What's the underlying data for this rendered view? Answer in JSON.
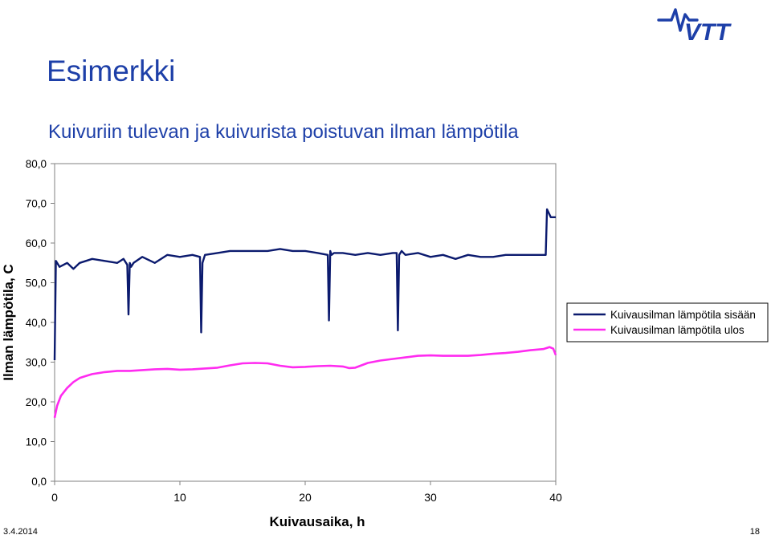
{
  "slide": {
    "title": "Esimerkki",
    "date": "3.4.2014",
    "page_number": "18"
  },
  "colors": {
    "title_text": "#1d3fa8",
    "brand": "#1d3fa8",
    "series_in": "#0b1a6e",
    "series_out": "#ff2bf0"
  },
  "logo": {
    "icon": "vtt-logo",
    "text": "VTT"
  },
  "chart_data": {
    "type": "line",
    "title": "Kuivuriin tulevan ja kuivurista poistuvan ilman lämpötila",
    "xlabel": "Kuivausaika, h",
    "ylabel": "Ilman lämpötila, C",
    "xlim": [
      0,
      40
    ],
    "ylim": [
      0,
      80
    ],
    "xticks": [
      "0",
      "10",
      "20",
      "30",
      "40"
    ],
    "yticks": [
      "0,0",
      "10,0",
      "20,0",
      "30,0",
      "40,0",
      "50,0",
      "60,0",
      "70,0",
      "80,0"
    ],
    "grid": false,
    "legend_position": "right",
    "series": [
      {
        "name": "Kuivausilman lämpötila sisään",
        "x": [
          0,
          0.1,
          0.4,
          1.0,
          1.5,
          2.0,
          3.0,
          4.0,
          5.0,
          5.5,
          5.8,
          5.9,
          6.0,
          6.1,
          6.3,
          7.0,
          8.0,
          9.0,
          10.0,
          11.0,
          11.6,
          11.7,
          11.8,
          12.0,
          13.0,
          14.0,
          15.0,
          16.0,
          17.0,
          18.0,
          19.0,
          20.0,
          21.0,
          21.8,
          21.9,
          22.0,
          22.1,
          22.3,
          23.0,
          24.0,
          25.0,
          26.0,
          27.0,
          27.3,
          27.4,
          27.5,
          27.7,
          28.0,
          29.0,
          30.0,
          31.0,
          32.0,
          33.0,
          34.0,
          35.0,
          36.0,
          37.0,
          38.0,
          39.0,
          39.2,
          39.3,
          39.6,
          40.0
        ],
        "y": [
          30.5,
          55.5,
          54,
          55,
          53.5,
          55,
          56,
          55.5,
          55,
          56,
          54.5,
          42,
          55,
          54,
          55,
          56.5,
          55,
          57,
          56.5,
          57,
          56.5,
          37.5,
          55,
          57,
          57.5,
          58,
          58,
          58,
          58,
          58.5,
          58,
          58,
          57.5,
          57,
          40.5,
          58,
          57,
          57.5,
          57.5,
          57,
          57.5,
          57,
          57.5,
          57.5,
          38,
          57,
          58,
          57,
          57.5,
          56.5,
          57,
          56,
          57,
          56.5,
          56.5,
          57,
          57,
          57,
          57,
          57,
          68.5,
          66.5,
          66.5
        ]
      },
      {
        "name": "Kuivausilman lämpötila ulos",
        "x": [
          0,
          0.2,
          0.5,
          1.0,
          1.5,
          2.0,
          2.5,
          3.0,
          4.0,
          5.0,
          6.0,
          7.0,
          8.0,
          9.0,
          10.0,
          11.0,
          12.0,
          13.0,
          14.0,
          15.0,
          16.0,
          17.0,
          18.0,
          19.0,
          20.0,
          21.0,
          22.0,
          23.0,
          23.5,
          24.0,
          25.0,
          26.0,
          27.0,
          28.0,
          29.0,
          30.0,
          31.0,
          32.0,
          33.0,
          34.0,
          35.0,
          36.0,
          37.0,
          38.0,
          39.0,
          39.5,
          39.8,
          40.0
        ],
        "y": [
          16,
          19,
          21.5,
          23.5,
          25,
          26,
          26.5,
          27,
          27.5,
          27.8,
          27.8,
          28,
          28.2,
          28.3,
          28.1,
          28.2,
          28.4,
          28.6,
          29.2,
          29.7,
          29.8,
          29.7,
          29.1,
          28.7,
          28.8,
          29.0,
          29.1,
          28.9,
          28.5,
          28.6,
          29.8,
          30.4,
          30.8,
          31.2,
          31.6,
          31.7,
          31.6,
          31.6,
          31.6,
          31.8,
          32.1,
          32.3,
          32.6,
          33.0,
          33.3,
          33.8,
          33.4,
          31.8
        ]
      }
    ]
  }
}
